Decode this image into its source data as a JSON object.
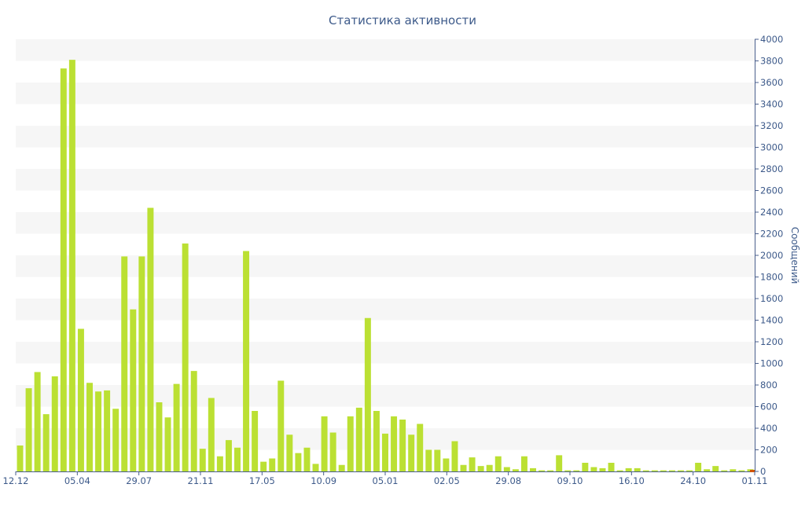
{
  "chart_data": {
    "type": "bar",
    "title": "Статистика активности",
    "xlabel": "",
    "ylabel": "Сообщений",
    "ylim": [
      0,
      4000
    ],
    "y_ticks": [
      0,
      200,
      400,
      600,
      800,
      1000,
      1200,
      1400,
      1600,
      1800,
      2000,
      2200,
      2400,
      2600,
      2800,
      3000,
      3200,
      3400,
      3600,
      3800,
      4000
    ],
    "y_axis_position": "right",
    "grid": "alternating horizontal bands",
    "bar_color": "#bbe033",
    "x_tick_labels": [
      "12.12",
      "05.04",
      "29.07",
      "21.11",
      "17.05",
      "10.09",
      "05.01",
      "02.05",
      "29.08",
      "09.10",
      "16.10",
      "24.10",
      "01.11"
    ],
    "values": [
      240,
      770,
      920,
      530,
      880,
      3730,
      3810,
      1320,
      820,
      740,
      750,
      580,
      1990,
      1500,
      1990,
      2440,
      640,
      500,
      810,
      2110,
      930,
      210,
      680,
      140,
      290,
      220,
      2040,
      560,
      90,
      120,
      840,
      340,
      170,
      220,
      70,
      510,
      360,
      60,
      510,
      590,
      1420,
      560,
      350,
      510,
      480,
      340,
      440,
      200,
      200,
      120,
      280,
      60,
      130,
      50,
      60,
      140,
      40,
      20,
      140,
      30,
      10,
      10,
      150,
      10,
      10,
      80,
      40,
      30,
      80,
      10,
      30,
      30,
      10,
      10,
      10,
      10,
      10,
      10,
      80,
      20,
      50,
      10,
      20,
      10,
      20
    ]
  }
}
